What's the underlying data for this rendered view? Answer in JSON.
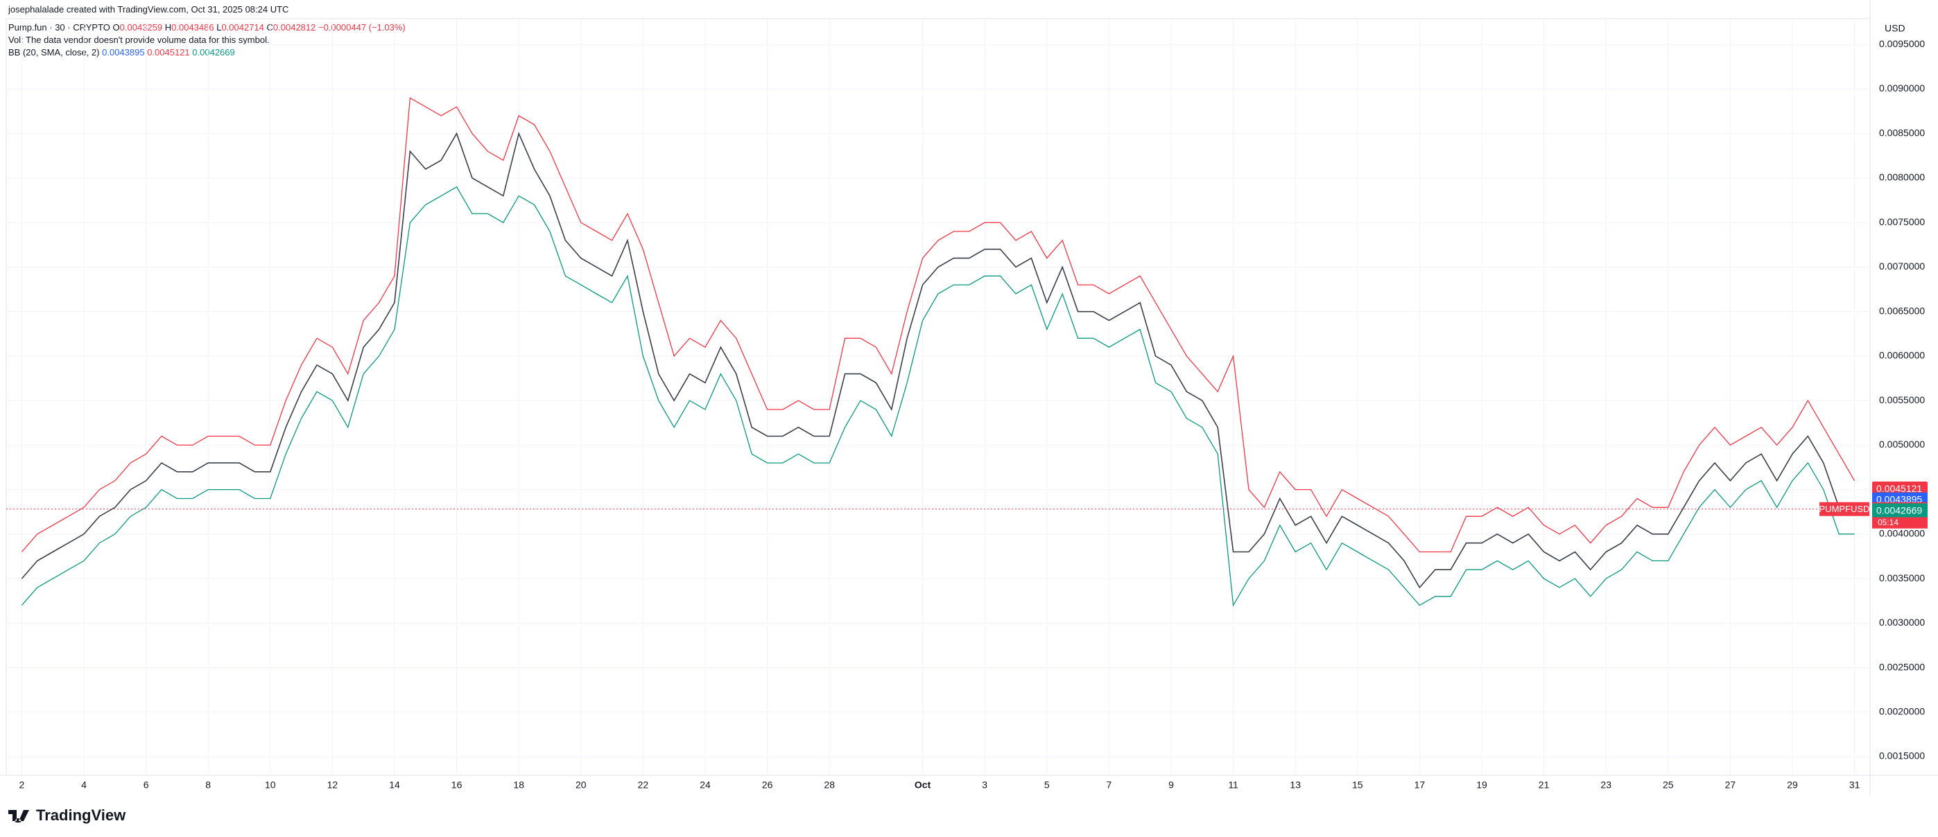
{
  "header": {
    "credit": "josephalalade created with TradingView.com, Oct 31, 2025 08:24 UTC",
    "symbol": "Pump.fun · 30 · CRYPTO",
    "ohlc": [
      {
        "key": "O",
        "value": "0.0043259"
      },
      {
        "key": "H",
        "value": "0.0043486"
      },
      {
        "key": "L",
        "value": "0.0042714"
      },
      {
        "key": "C",
        "value": "0.0042812"
      }
    ],
    "change": "−0.0000447 (−1.03%)",
    "vol_note": "Vol: The data vendor doesn't provide volume data for this symbol.",
    "indicator": "BB (20, SMA, close, 2)",
    "indicator_values": [
      "0.0043895",
      "0.0045121",
      "0.0042669"
    ]
  },
  "chart_data": {
    "type": "line",
    "currency": "USD",
    "x": [
      2,
      2.5,
      3,
      3.5,
      4,
      4.5,
      5,
      5.5,
      6,
      6.5,
      7,
      7.5,
      8,
      8.5,
      9,
      9.5,
      10,
      10.5,
      11,
      11.5,
      12,
      12.5,
      13,
      13.5,
      14,
      14.5,
      15,
      15.5,
      16,
      16.5,
      17,
      17.5,
      18,
      18.5,
      19,
      19.5,
      20,
      20.5,
      21,
      21.5,
      22,
      22.5,
      23,
      23.5,
      24,
      24.5,
      25,
      25.5,
      26,
      26.5,
      27,
      27.5,
      28,
      28.5,
      29,
      29.5,
      30,
      30.5,
      31,
      31.5,
      32,
      32.5,
      33,
      33.5,
      34,
      34.5,
      35,
      35.5,
      36,
      36.5,
      37,
      37.5,
      38,
      38.5,
      39,
      39.5,
      40,
      40.5,
      41,
      41.5,
      42,
      42.5,
      43,
      43.5,
      44,
      44.5,
      45,
      45.5,
      46,
      46.5,
      47,
      47.5,
      48,
      48.5,
      49,
      49.5,
      50,
      50.5,
      51,
      51.5,
      52,
      52.5,
      53,
      53.5,
      54,
      54.5,
      55,
      55.5,
      56,
      56.5,
      57,
      57.5,
      58,
      58.5,
      59,
      59.5,
      60,
      60.5,
      61
    ],
    "series": [
      {
        "color": "#f23645",
        "values": [
          0.0038,
          0.004,
          0.0041,
          0.0042,
          0.0043,
          0.0045,
          0.0046,
          0.0048,
          0.0049,
          0.0051,
          0.005,
          0.005,
          0.0051,
          0.0051,
          0.0051,
          0.005,
          0.005,
          0.0055,
          0.0059,
          0.0062,
          0.0061,
          0.0058,
          0.0064,
          0.0066,
          0.0069,
          0.0089,
          0.0088,
          0.0087,
          0.0088,
          0.0085,
          0.0083,
          0.0082,
          0.0087,
          0.0086,
          0.0083,
          0.0079,
          0.0075,
          0.0074,
          0.0073,
          0.0076,
          0.0072,
          0.0066,
          0.006,
          0.0062,
          0.0061,
          0.0064,
          0.0062,
          0.0058,
          0.0054,
          0.0054,
          0.0055,
          0.0054,
          0.0054,
          0.0062,
          0.0062,
          0.0061,
          0.0058,
          0.0065,
          0.0071,
          0.0073,
          0.0074,
          0.0074,
          0.0075,
          0.0075,
          0.0073,
          0.0074,
          0.0071,
          0.0073,
          0.0068,
          0.0068,
          0.0067,
          0.0068,
          0.0069,
          0.0066,
          0.0063,
          0.006,
          0.0058,
          0.0056,
          0.006,
          0.0045,
          0.0043,
          0.0047,
          0.0045,
          0.0045,
          0.0042,
          0.0045,
          0.0044,
          0.0043,
          0.0042,
          0.004,
          0.0038,
          0.0038,
          0.0038,
          0.0042,
          0.0042,
          0.0043,
          0.0042,
          0.0043,
          0.0041,
          0.004,
          0.0041,
          0.0039,
          0.0041,
          0.0042,
          0.0044,
          0.0043,
          0.0043,
          0.0047,
          0.005,
          0.0052,
          0.005,
          0.0051,
          0.0052,
          0.005,
          0.0052,
          0.0055,
          0.0052,
          0.0049,
          0.0046
        ]
      },
      {
        "color": "#089981",
        "values": [
          0.0032,
          0.0034,
          0.0035,
          0.0036,
          0.0037,
          0.0039,
          0.004,
          0.0042,
          0.0043,
          0.0045,
          0.0044,
          0.0044,
          0.0045,
          0.0045,
          0.0045,
          0.0044,
          0.0044,
          0.0049,
          0.0053,
          0.0056,
          0.0055,
          0.0052,
          0.0058,
          0.006,
          0.0063,
          0.0075,
          0.0077,
          0.0078,
          0.0079,
          0.0076,
          0.0076,
          0.0075,
          0.0078,
          0.0077,
          0.0074,
          0.0069,
          0.0068,
          0.0067,
          0.0066,
          0.0069,
          0.006,
          0.0055,
          0.0052,
          0.0055,
          0.0054,
          0.0058,
          0.0055,
          0.0049,
          0.0048,
          0.0048,
          0.0049,
          0.0048,
          0.0048,
          0.0052,
          0.0055,
          0.0054,
          0.0051,
          0.0057,
          0.0064,
          0.0067,
          0.0068,
          0.0068,
          0.0069,
          0.0069,
          0.0067,
          0.0068,
          0.0063,
          0.0067,
          0.0062,
          0.0062,
          0.0061,
          0.0062,
          0.0063,
          0.0057,
          0.0056,
          0.0053,
          0.0052,
          0.0049,
          0.0032,
          0.0035,
          0.0037,
          0.0041,
          0.0038,
          0.0039,
          0.0036,
          0.0039,
          0.0038,
          0.0037,
          0.0036,
          0.0034,
          0.0032,
          0.0033,
          0.0033,
          0.0036,
          0.0036,
          0.0037,
          0.0036,
          0.0037,
          0.0035,
          0.0034,
          0.0035,
          0.0033,
          0.0035,
          0.0036,
          0.0038,
          0.0037,
          0.0037,
          0.004,
          0.0043,
          0.0045,
          0.0043,
          0.0045,
          0.0046,
          0.0043,
          0.0046,
          0.0048,
          0.0045,
          0.004,
          0.004
        ]
      },
      {
        "color": "#3a3e4a",
        "values": [
          0.0035,
          0.0037,
          0.0038,
          0.0039,
          0.004,
          0.0042,
          0.0043,
          0.0045,
          0.0046,
          0.0048,
          0.0047,
          0.0047,
          0.0048,
          0.0048,
          0.0048,
          0.0047,
          0.0047,
          0.0052,
          0.0056,
          0.0059,
          0.0058,
          0.0055,
          0.0061,
          0.0063,
          0.0066,
          0.0083,
          0.0081,
          0.0082,
          0.0085,
          0.008,
          0.0079,
          0.0078,
          0.0085,
          0.0081,
          0.0078,
          0.0073,
          0.0071,
          0.007,
          0.0069,
          0.0073,
          0.0065,
          0.0058,
          0.0055,
          0.0058,
          0.0057,
          0.0061,
          0.0058,
          0.0052,
          0.0051,
          0.0051,
          0.0052,
          0.0051,
          0.0051,
          0.0058,
          0.0058,
          0.0057,
          0.0054,
          0.0062,
          0.0068,
          0.007,
          0.0071,
          0.0071,
          0.0072,
          0.0072,
          0.007,
          0.0071,
          0.0066,
          0.007,
          0.0065,
          0.0065,
          0.0064,
          0.0065,
          0.0066,
          0.006,
          0.0059,
          0.0056,
          0.0055,
          0.0052,
          0.0038,
          0.0038,
          0.004,
          0.0044,
          0.0041,
          0.0042,
          0.0039,
          0.0042,
          0.0041,
          0.004,
          0.0039,
          0.0037,
          0.0034,
          0.0036,
          0.0036,
          0.0039,
          0.0039,
          0.004,
          0.0039,
          0.004,
          0.0038,
          0.0037,
          0.0038,
          0.0036,
          0.0038,
          0.0039,
          0.0041,
          0.004,
          0.004,
          0.0043,
          0.0046,
          0.0048,
          0.0046,
          0.0048,
          0.0049,
          0.0046,
          0.0049,
          0.0051,
          0.0048,
          0.0043,
          0.0043
        ]
      }
    ],
    "xlim": [
      1.5,
      61.5
    ],
    "ylim": [
      0.00129,
      0.00979
    ],
    "xticks": [
      2,
      4,
      6,
      8,
      10,
      12,
      14,
      16,
      18,
      20,
      22,
      24,
      26,
      28,
      {
        "value": 31,
        "label": "Oct"
      },
      {
        "value": 33,
        "label": "3"
      },
      {
        "value": 35,
        "label": "5"
      },
      {
        "value": 37,
        "label": "7"
      },
      {
        "value": 39,
        "label": "9"
      },
      {
        "value": 41,
        "label": "11"
      },
      {
        "value": 43,
        "label": "13"
      },
      {
        "value": 45,
        "label": "15"
      },
      {
        "value": 47,
        "label": "17"
      },
      {
        "value": 49,
        "label": "19"
      },
      {
        "value": 51,
        "label": "21"
      },
      {
        "value": 53,
        "label": "23"
      },
      {
        "value": 55,
        "label": "25"
      },
      {
        "value": 57,
        "label": "27"
      },
      {
        "value": 59,
        "label": "29"
      },
      {
        "value": 61,
        "label": "31"
      }
    ],
    "yticks": [
      {
        "value": 0.0015,
        "label": "0.0015000"
      },
      {
        "value": 0.002,
        "label": "0.0020000"
      },
      {
        "value": 0.0025,
        "label": "0.0025000"
      },
      {
        "value": 0.003,
        "label": "0.0030000"
      },
      {
        "value": 0.0035,
        "label": "0.0035000"
      },
      {
        "value": 0.004,
        "label": "0.0040000"
      },
      {
        "value": 0.0045,
        "label": "0.0045000"
      },
      {
        "value": 0.005,
        "label": "0.0050000"
      },
      {
        "value": 0.0055,
        "label": "0.0055000"
      },
      {
        "value": 0.006,
        "label": "0.0060000"
      },
      {
        "value": 0.0065,
        "label": "0.0065000"
      },
      {
        "value": 0.007,
        "label": "0.0070000"
      },
      {
        "value": 0.0075,
        "label": "0.0075000"
      },
      {
        "value": 0.008,
        "label": "0.0080000"
      },
      {
        "value": 0.0085,
        "label": "0.0085000"
      },
      {
        "value": 0.009,
        "label": "0.0090000"
      },
      {
        "value": 0.0095,
        "label": "0.0095000"
      }
    ],
    "grid": true,
    "price_tags": [
      {
        "value": 0.0045121,
        "color": "#f23645"
      },
      {
        "value": 0.0043895,
        "color": "#2962ff"
      },
      {
        "value": 0.0042812,
        "color": "#f23645",
        "symbol": "PUMPFUSD",
        "countdown": "05:14"
      },
      {
        "value": 0.0042669,
        "color": "#089981"
      }
    ]
  },
  "footer": {
    "logo": "TradingView"
  }
}
